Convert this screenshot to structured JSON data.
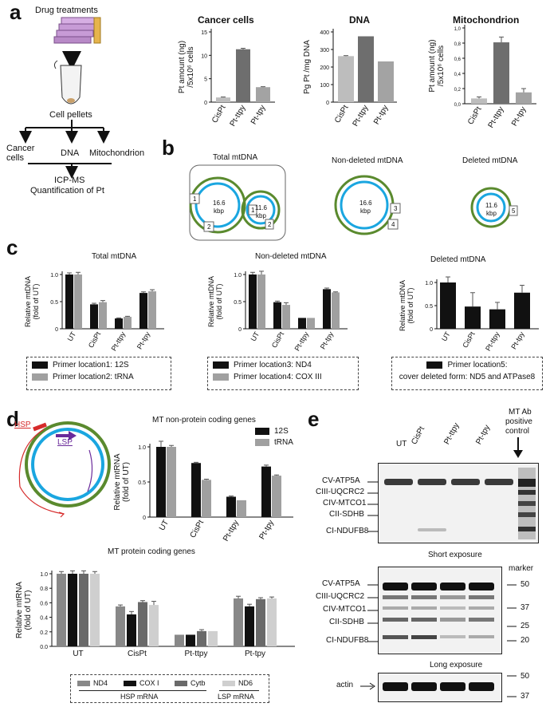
{
  "panels": {
    "a": "a",
    "b": "b",
    "c": "c",
    "d": "d",
    "e": "e"
  },
  "panel_a": {
    "flow": [
      "Drug treatments",
      "Cell pellets",
      "Cancer cells",
      "DNA",
      "Mitochondrion",
      "ICP-MS",
      "Quantification of Pt"
    ]
  },
  "chart_a": [
    {
      "type": "bar",
      "title": "Cancer cells",
      "ylabel": "Pt amount (ng) /5x10⁶ cells",
      "ylabel_lines": [
        "Pt amount (ng)",
        "/5x10⁶ cells"
      ],
      "categories": [
        "CisPt",
        "Pt-ttpy",
        "Pt-tpy"
      ],
      "values": [
        1,
        11.3,
        3.2
      ],
      "errors": [
        0.1,
        0.2,
        0.1
      ],
      "ylim": [
        0,
        15
      ],
      "yticks": [
        "0",
        "5",
        "10",
        "15"
      ],
      "colors": [
        "#bdbdbd",
        "#6e6e6e",
        "#a3a3a3"
      ]
    },
    {
      "type": "bar",
      "title": "DNA",
      "ylabel": "Pg Pt /mg DNA",
      "ylabel_lines": [
        "Pg Pt /mg DNA"
      ],
      "categories": [
        "CisPt",
        "Pt-ttpy",
        "Pt-tpy"
      ],
      "values": [
        262,
        375,
        232
      ],
      "errors": [
        3,
        0,
        0
      ],
      "ylim": [
        0,
        400
      ],
      "yticks": [
        "0",
        "100",
        "200",
        "300",
        "400"
      ],
      "colors": [
        "#bdbdbd",
        "#6e6e6e",
        "#a3a3a3"
      ]
    },
    {
      "type": "bar",
      "title": "Mitochondrion",
      "ylabel": "Pt amount (ng) /5x10⁶ cells",
      "ylabel_lines": [
        "Pt amount (ng)",
        "/5x10⁶ cells"
      ],
      "categories": [
        "CisPt",
        "Pt-ttpy",
        "Pt-tpy"
      ],
      "values": [
        0.07,
        0.81,
        0.15
      ],
      "errors": [
        0.02,
        0.07,
        0.05
      ],
      "ylim": [
        0,
        1.0
      ],
      "yticks": [
        "0,0",
        "0,2",
        "0,4",
        "0,6",
        "0,8",
        "1,0"
      ],
      "colors": [
        "#bdbdbd",
        "#6e6e6e",
        "#a3a3a3"
      ]
    }
  ],
  "panel_b": {
    "titles": [
      "Total mtDNA",
      "Non-deleted mtDNA",
      "Deleted mtDNA"
    ],
    "big_circle": [
      "16.6",
      "kbp"
    ],
    "small_circle": [
      "11.6",
      "kbp"
    ],
    "primer_marks": [
      "1",
      "2",
      "1",
      "2",
      "3",
      "4",
      "5"
    ]
  },
  "chart_c": [
    {
      "type": "bar",
      "title": "Total mtDNA",
      "ylabel": "Relative mtDNA (fold of UT)",
      "ylabel_lines": [
        "Relative mtDNA",
        "(fold of UT)"
      ],
      "categories": [
        "UT",
        "CisPt",
        "Pt-ttpy",
        "Pt-tpy"
      ],
      "series": [
        {
          "values": [
            1.0,
            0.45,
            0.19,
            0.66
          ],
          "errors": [
            0.03,
            0.02,
            0.01,
            0.02
          ],
          "color": "#111111"
        },
        {
          "values": [
            1.0,
            0.49,
            0.22,
            0.69
          ],
          "errors": [
            0.04,
            0.03,
            0.01,
            0.03
          ],
          "color": "#a0a0a0"
        }
      ],
      "ylim": [
        0,
        1.0
      ],
      "yticks": [
        "0",
        "0.5",
        "1.0"
      ]
    },
    {
      "type": "bar",
      "title": "Non-deleted mtDNA",
      "ylabel": "Relative mtDNA (fold of UT)",
      "ylabel_lines": [
        "Relative mtDNA",
        "(fold of UT)"
      ],
      "categories": [
        "UT",
        "CisPt",
        "Pt-ttpy",
        "Pt-tpy"
      ],
      "series": [
        {
          "values": [
            1.0,
            0.49,
            0.2,
            0.73
          ],
          "errors": [
            0.04,
            0.02,
            0.0,
            0.02
          ],
          "color": "#111111"
        },
        {
          "values": [
            1.0,
            0.44,
            0.2,
            0.67
          ],
          "errors": [
            0.06,
            0.04,
            0.0,
            0.01
          ],
          "color": "#a0a0a0"
        }
      ],
      "ylim": [
        0,
        1.0
      ],
      "yticks": [
        "0",
        "0.5",
        "1.0"
      ]
    },
    {
      "type": "bar",
      "title": "Deleted mtDNA",
      "ylabel": "Relative mtDNA (fold of UT)",
      "ylabel_lines": [
        "Relative mtDNA",
        "(fold of UT)"
      ],
      "categories": [
        "UT",
        "CisPt",
        "Pt-ttpy",
        "Pt-tpy"
      ],
      "series": [
        {
          "values": [
            1.0,
            0.48,
            0.42,
            0.78
          ],
          "errors": [
            0.12,
            0.3,
            0.15,
            0.16
          ],
          "color": "#111111"
        }
      ],
      "ylim": [
        0,
        1.0
      ],
      "yticks": [
        "0",
        "0.5",
        "1.0"
      ]
    }
  ],
  "legend_c": [
    [
      {
        "label": "Primer location1: 12S",
        "color": "#111111"
      },
      {
        "label": "Primer location2: tRNA",
        "color": "#a0a0a0"
      }
    ],
    [
      {
        "label": "Primer location3: ND4",
        "color": "#111111"
      },
      {
        "label": "Primer location4: COX III",
        "color": "#a0a0a0"
      }
    ],
    [
      {
        "label": "Primer location5:",
        "color": "#111111"
      },
      {
        "label": "cover deleted form: ND5 and ATPase8",
        "color": ""
      }
    ]
  ],
  "panel_d": {
    "hsp": "HSP",
    "lsp": "LSP"
  },
  "chart_d": [
    {
      "type": "bar",
      "title": "MT non-protein coding genes",
      "ylabel": "Relative mtRNA (fold of UT)",
      "ylabel_lines": [
        "Relative mtRNA",
        "(fold of UT)"
      ],
      "categories": [
        "UT",
        "CisPt",
        "Pt-ttpy",
        "Pt-tpy"
      ],
      "series": [
        {
          "name": "12S",
          "values": [
            1.0,
            0.77,
            0.29,
            0.72
          ],
          "errors": [
            0.08,
            0.01,
            0.01,
            0.02
          ],
          "color": "#111111"
        },
        {
          "name": "tRNA",
          "values": [
            1.0,
            0.53,
            0.24,
            0.59
          ],
          "errors": [
            0.02,
            0.01,
            0.0,
            0.01
          ],
          "color": "#a0a0a0"
        }
      ],
      "ylim": [
        0,
        1.0
      ],
      "yticks": [
        "0",
        "0.5",
        "1.0"
      ]
    },
    {
      "type": "bar",
      "title": "MT protein coding genes",
      "ylabel": "Relative mtRNA (fold of UT)",
      "ylabel_lines": [
        "Relative mtRNA",
        "(fold of UT)"
      ],
      "categories": [
        "UT",
        "CisPt",
        "Pt-ttpy",
        "Pt-tpy"
      ],
      "series": [
        {
          "name": "ND4",
          "values": [
            1.0,
            0.55,
            0.16,
            0.66
          ],
          "errors": [
            0.03,
            0.02,
            0.0,
            0.03
          ],
          "color": "#888888"
        },
        {
          "name": "COX I",
          "values": [
            1.0,
            0.44,
            0.16,
            0.55
          ],
          "errors": [
            0.04,
            0.04,
            0.0,
            0.03
          ],
          "color": "#111111"
        },
        {
          "name": "Cytb",
          "values": [
            1.0,
            0.61,
            0.21,
            0.65
          ],
          "errors": [
            0.04,
            0.02,
            0.02,
            0.02
          ],
          "color": "#6a6a6a"
        },
        {
          "name": "ND6",
          "values": [
            1.0,
            0.57,
            0.21,
            0.66
          ],
          "errors": [
            0.03,
            0.05,
            0.0,
            0.02
          ],
          "color": "#cfcfcf"
        }
      ],
      "ylim": [
        0,
        1.0
      ],
      "yticks": [
        "0.0",
        "0.2",
        "0.4",
        "0.6",
        "0.8",
        "1.0"
      ]
    }
  ],
  "legend_d": {
    "items": [
      {
        "label": "ND4",
        "color": "#888888"
      },
      {
        "label": "COX I",
        "color": "#111111"
      },
      {
        "label": "Cytb",
        "color": "#6a6a6a"
      },
      {
        "label": "ND6",
        "color": "#cfcfcf"
      }
    ],
    "groups": [
      "HSP mRNA",
      "LSP mRNA"
    ]
  },
  "panel_e": {
    "lanes": [
      "UT",
      "CisPt",
      "Pt-ttpy",
      "Pt-tpy"
    ],
    "control": [
      "MT Ab",
      "positive",
      "control"
    ],
    "bands": [
      "CV-ATP5A",
      "CIII-UQCRC2",
      "CIV-MTCO1",
      "CII-SDHB",
      "CI-NDUFB8"
    ],
    "short_exposure": "Short exposure",
    "long_exposure": "Long exposure",
    "marker": "marker",
    "marker_values": [
      "50",
      "37",
      "25",
      "20"
    ],
    "actin": "actin",
    "actin_markers": [
      "50",
      "37"
    ]
  }
}
